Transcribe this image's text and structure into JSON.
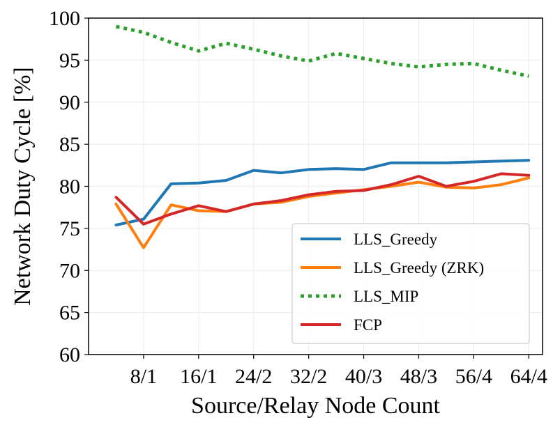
{
  "chart_data": {
    "type": "line",
    "title": "",
    "xlabel": "Source/Relay Node Count",
    "ylabel": "Network Duty Cycle [%]",
    "ylim": [
      60,
      100
    ],
    "yticks": [
      60,
      65,
      70,
      75,
      80,
      85,
      90,
      95,
      100
    ],
    "x": [
      4,
      8,
      12,
      16,
      20,
      24,
      28,
      32,
      36,
      40,
      44,
      48,
      52,
      56,
      60,
      64
    ],
    "xlim": [
      0,
      66
    ],
    "xticks": [
      8,
      16,
      24,
      32,
      40,
      48,
      56,
      64
    ],
    "xtick_labels": [
      "8/1",
      "16/1",
      "24/2",
      "32/2",
      "40/3",
      "48/3",
      "56/4",
      "64/4"
    ],
    "grid": true,
    "legend_position": "lower-right",
    "series": [
      {
        "name": "LLS_Greedy",
        "color": "#1f77b4",
        "style": "solid",
        "values": [
          75.4,
          76.1,
          80.3,
          80.4,
          80.7,
          81.9,
          81.6,
          82.0,
          82.1,
          82.0,
          82.8,
          82.8,
          82.8,
          82.9,
          83.0,
          83.1
        ]
      },
      {
        "name": "LLS_Greedy (ZRK)",
        "color": "#ff7f0e",
        "style": "solid",
        "values": [
          77.9,
          72.7,
          77.8,
          77.1,
          77.0,
          77.9,
          78.1,
          78.8,
          79.2,
          79.6,
          80.0,
          80.5,
          79.9,
          79.8,
          80.2,
          81.0
        ]
      },
      {
        "name": "LLS_MIP",
        "color": "#2ca02c",
        "style": "dotted",
        "values": [
          99.0,
          98.3,
          97.1,
          96.1,
          97.0,
          96.3,
          95.5,
          94.9,
          95.8,
          95.2,
          94.6,
          94.2,
          94.5,
          94.6,
          93.8,
          93.1
        ]
      },
      {
        "name": "FCP",
        "color": "#d62728",
        "style": "solid",
        "values": [
          78.7,
          75.5,
          76.7,
          77.7,
          77.0,
          77.9,
          78.3,
          79.0,
          79.4,
          79.5,
          80.2,
          81.2,
          80.0,
          80.6,
          81.5,
          81.3
        ]
      }
    ]
  }
}
